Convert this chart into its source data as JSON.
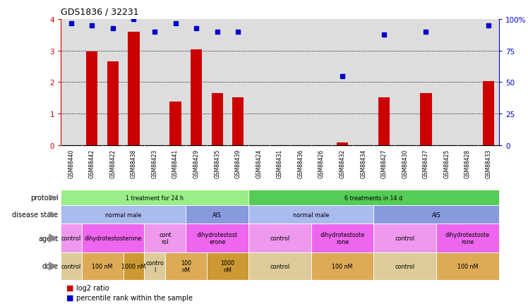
{
  "title": "GDS1836 / 32231",
  "samples": [
    "GSM88440",
    "GSM88442",
    "GSM88422",
    "GSM88438",
    "GSM88423",
    "GSM88441",
    "GSM88429",
    "GSM88435",
    "GSM88439",
    "GSM88424",
    "GSM88431",
    "GSM88436",
    "GSM88426",
    "GSM88432",
    "GSM88434",
    "GSM88427",
    "GSM88430",
    "GSM88437",
    "GSM88425",
    "GSM88428",
    "GSM88433"
  ],
  "log2_ratio": [
    0.0,
    2.98,
    2.65,
    3.6,
    0.0,
    1.38,
    3.05,
    1.65,
    1.52,
    0.0,
    0.0,
    0.0,
    0.0,
    0.08,
    0.0,
    1.52,
    0.0,
    1.65,
    0.0,
    0.0,
    2.03
  ],
  "percentile": [
    97,
    95,
    93,
    100,
    90,
    97,
    93,
    90,
    90,
    null,
    null,
    null,
    null,
    55,
    null,
    88,
    null,
    90,
    null,
    null,
    95
  ],
  "ylim_left": [
    0,
    4
  ],
  "ylim_right": [
    0,
    100
  ],
  "yticks_left": [
    0,
    1,
    2,
    3,
    4
  ],
  "yticks_right": [
    0,
    25,
    50,
    75,
    100
  ],
  "yticklabels_right": [
    "0",
    "25",
    "50",
    "75",
    "100%"
  ],
  "bar_color": "#cc0000",
  "dot_color": "#0000cc",
  "protocol_groups": [
    {
      "label": "1 treatment for 24 h",
      "start": 0,
      "end": 8,
      "color": "#99ee88"
    },
    {
      "label": "6 treatments in 14 d",
      "start": 9,
      "end": 20,
      "color": "#55cc55"
    }
  ],
  "disease_groups": [
    {
      "label": "normal male",
      "start": 0,
      "end": 5,
      "color": "#aabbee"
    },
    {
      "label": "AIS",
      "start": 6,
      "end": 8,
      "color": "#8899dd"
    },
    {
      "label": "normal male",
      "start": 9,
      "end": 14,
      "color": "#aabbee"
    },
    {
      "label": "AIS",
      "start": 15,
      "end": 20,
      "color": "#8899dd"
    }
  ],
  "agent_groups": [
    {
      "label": "control",
      "start": 0,
      "end": 0,
      "color": "#ee99ee"
    },
    {
      "label": "dihydrotestosterone",
      "start": 1,
      "end": 3,
      "color": "#ee66ee"
    },
    {
      "label": "cont\nrol",
      "start": 4,
      "end": 5,
      "color": "#ee99ee"
    },
    {
      "label": "dihydrotestost\nerone",
      "start": 6,
      "end": 8,
      "color": "#ee66ee"
    },
    {
      "label": "control",
      "start": 9,
      "end": 11,
      "color": "#ee99ee"
    },
    {
      "label": "dihydrotestoste\nrone",
      "start": 12,
      "end": 14,
      "color": "#ee66ee"
    },
    {
      "label": "control",
      "start": 15,
      "end": 17,
      "color": "#ee99ee"
    },
    {
      "label": "dihydrotestoste\nrone",
      "start": 18,
      "end": 20,
      "color": "#ee66ee"
    }
  ],
  "dose_groups": [
    {
      "label": "control",
      "start": 0,
      "end": 0,
      "color": "#ddcc99"
    },
    {
      "label": "100 nM",
      "start": 1,
      "end": 2,
      "color": "#ddaa55"
    },
    {
      "label": "1000 nM",
      "start": 3,
      "end": 3,
      "color": "#cc9933"
    },
    {
      "label": "contro\nl",
      "start": 4,
      "end": 4,
      "color": "#ddcc99"
    },
    {
      "label": "100\nnM",
      "start": 5,
      "end": 6,
      "color": "#ddaa55"
    },
    {
      "label": "1000\nnM",
      "start": 7,
      "end": 8,
      "color": "#cc9933"
    },
    {
      "label": "control",
      "start": 9,
      "end": 11,
      "color": "#ddcc99"
    },
    {
      "label": "100 nM",
      "start": 12,
      "end": 14,
      "color": "#ddaa55"
    },
    {
      "label": "control",
      "start": 15,
      "end": 17,
      "color": "#ddcc99"
    },
    {
      "label": "100 nM",
      "start": 18,
      "end": 20,
      "color": "#ddaa55"
    }
  ],
  "bg_color": "#ffffff",
  "plot_bg": "#dddddd"
}
